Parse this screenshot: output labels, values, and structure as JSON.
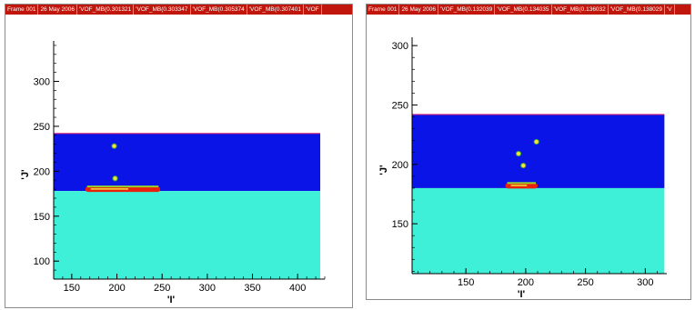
{
  "chart_data": [
    {
      "type": "heatmap",
      "title_bar": [
        "Frame 001",
        "26 May 2006",
        "'VOF_MB(0.301321",
        "'VOF_MB(0.303347",
        "'VOF_MB(0.305374",
        "'VOF_MB(0.307401",
        "'VOF"
      ],
      "xlabel": "'I'",
      "ylabel": "'J'",
      "xlim": [
        130,
        430
      ],
      "ylim": [
        80,
        345
      ],
      "xticks": [
        150,
        200,
        250,
        300,
        350,
        400
      ],
      "yticks": [
        100,
        150,
        200,
        250,
        300
      ],
      "xtick_labels": [
        "150",
        "200",
        "250",
        "300",
        "350",
        "400"
      ],
      "ytick_labels": [
        "100",
        "150",
        "200",
        "250",
        "300"
      ],
      "regions": [
        {
          "name": "",
          "color": "#0a14e6",
          "y_from": 178,
          "y_to": 242
        },
        {
          "name": "",
          "color": "#3ff0d8",
          "y_from": 80,
          "y_to": 178
        }
      ],
      "domain_right": 425,
      "interface_y": 178,
      "top_boundary_y": 242,
      "droplets": [
        {
          "x": 197,
          "y": 228
        },
        {
          "x": 198,
          "y": 192
        }
      ],
      "splash_band": {
        "x_from": 165,
        "x_to": 248,
        "y": 180
      }
    },
    {
      "type": "heatmap",
      "title_bar": [
        "Frame 001",
        "26 May 2006",
        "'VOF_MB(0.132039",
        "'VOF_MB(0.134035",
        "'VOF_MB(0.136032",
        "'VOF_MB(0.138029",
        "'V"
      ],
      "xlabel": "'I'",
      "ylabel": "'J'",
      "xlim": [
        105,
        318
      ],
      "ylim": [
        108,
        307
      ],
      "xticks": [
        150,
        200,
        250,
        300
      ],
      "yticks": [
        150,
        200,
        250,
        300
      ],
      "xtick_labels": [
        "150",
        "200",
        "250",
        "300"
      ],
      "ytick_labels": [
        "150",
        "200",
        "250",
        "300"
      ],
      "regions": [
        {
          "name": "",
          "color": "#0a14e6",
          "y_from": 180,
          "y_to": 242
        },
        {
          "name": "",
          "color": "#3ff0d8",
          "y_from": 108,
          "y_to": 180
        }
      ],
      "domain_right": 316,
      "interface_y": 180,
      "top_boundary_y": 242,
      "droplets": [
        {
          "x": 209,
          "y": 219
        },
        {
          "x": 194,
          "y": 209
        },
        {
          "x": 198,
          "y": 199
        }
      ],
      "splash_band": {
        "x_from": 183,
        "x_to": 210,
        "y": 182
      }
    }
  ]
}
